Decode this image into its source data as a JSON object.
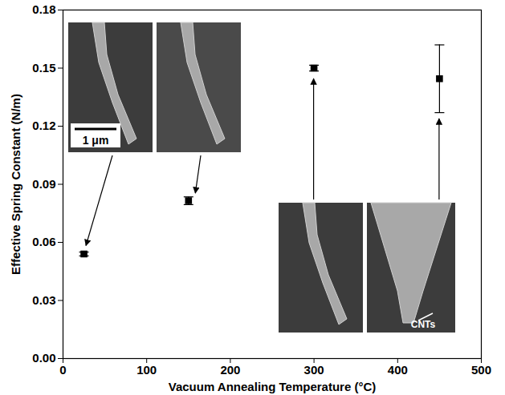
{
  "chart_data": {
    "type": "scatter",
    "x_label": "Vacuum Annealing Temperature (°C)",
    "y_label": "Effective Spring Constant (N/m)",
    "x": [
      25,
      150,
      300,
      450
    ],
    "values": [
      0.054,
      0.0815,
      0.15,
      0.1445
    ],
    "errors": [
      0.001,
      0.002,
      0.0015,
      0.0175
    ],
    "xlim": [
      0,
      500
    ],
    "xticks": [
      0,
      100,
      200,
      300,
      400,
      500
    ],
    "ylim": [
      0,
      0.18
    ],
    "yticks": [
      {
        "value": 0,
        "label": "0.00"
      },
      {
        "value": 0.03,
        "label": "0.03"
      },
      {
        "value": 0.06,
        "label": "0.06"
      },
      {
        "value": 0.09,
        "label": "0.09"
      },
      {
        "value": 0.12,
        "label": "0.12"
      },
      {
        "value": 0.15,
        "label": "0.15"
      },
      {
        "value": 0.18,
        "label": "0.18"
      }
    ],
    "color": "#000000",
    "marker": "square",
    "annotations": [
      "1 μm",
      "CNTs"
    ]
  }
}
